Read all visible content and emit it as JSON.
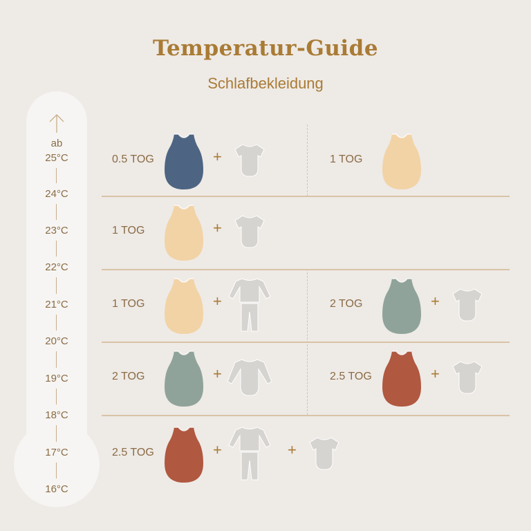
{
  "header": {
    "title": "Temperatur-Guide",
    "subtitle": "Schlafbekleidung"
  },
  "thermometer": {
    "arrow": "arrow-up-icon",
    "prefix": "ab",
    "temperatures": [
      "25°C",
      "24°C",
      "23°C",
      "22°C",
      "21°C",
      "20°C",
      "19°C",
      "18°C",
      "17°C",
      "16°C"
    ]
  },
  "colors": {
    "background": "#eeeae6",
    "accent": "#a97b35",
    "divider": "#d9c3a6",
    "navy": "#4d6582",
    "peach": "#f2d3a6",
    "sage": "#8fa39a",
    "rust": "#b05840",
    "garment": "#d6d4d0"
  },
  "plus_sign": "+",
  "rows": [
    {
      "cells": [
        {
          "tog": "0.5 TOG",
          "sack_color": "navy",
          "items": [
            "short-sleeve-bodysuit-icon"
          ]
        },
        {
          "tog": "1 TOG",
          "sack_color": "peach",
          "items": []
        }
      ]
    },
    {
      "cells": [
        {
          "tog": "1 TOG",
          "sack_color": "peach",
          "items": [
            "short-sleeve-bodysuit-icon"
          ]
        }
      ]
    },
    {
      "cells": [
        {
          "tog": "1 TOG",
          "sack_color": "peach",
          "items": [
            "pajamas-icon"
          ]
        },
        {
          "tog": "2 TOG",
          "sack_color": "sage",
          "items": [
            "short-sleeve-bodysuit-icon"
          ]
        }
      ]
    },
    {
      "cells": [
        {
          "tog": "2 TOG",
          "sack_color": "sage",
          "items": [
            "long-sleeve-bodysuit-icon"
          ]
        },
        {
          "tog": "2.5 TOG",
          "sack_color": "rust",
          "items": [
            "short-sleeve-bodysuit-icon"
          ]
        }
      ]
    },
    {
      "cells": [
        {
          "tog": "2.5 TOG",
          "sack_color": "rust",
          "items": [
            "pajamas-icon",
            "short-sleeve-bodysuit-icon"
          ]
        }
      ]
    }
  ]
}
